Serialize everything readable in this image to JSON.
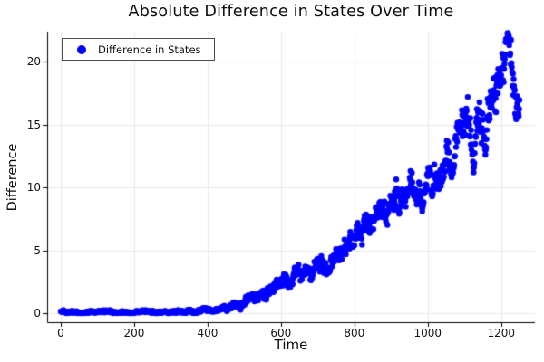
{
  "title": "Absolute Difference in States Over Time",
  "chart_data": {
    "type": "scatter",
    "title": "Absolute Difference in States Over Time",
    "xlabel": "Time",
    "ylabel": "Difference",
    "legend": {
      "position": "top-left",
      "entries": [
        {
          "label": "Difference in States",
          "marker": "circle",
          "color": "#0000ff"
        }
      ]
    },
    "x_ticks": [
      0,
      200,
      400,
      600,
      800,
      1000,
      1200
    ],
    "y_ticks": [
      0,
      5,
      10,
      15,
      20
    ],
    "xlim": [
      -37,
      1292
    ],
    "ylim": [
      -0.72,
      22.4
    ],
    "grid": true,
    "colors": {
      "series": "#0000ff",
      "grid": "#e8e8e8",
      "axis": "#000000",
      "text": "#111111"
    },
    "series": [
      {
        "name": "Difference in States",
        "color": "#0000ff",
        "marker": "circle",
        "marker_radius": 3.2,
        "t_start": 0,
        "t_end": 1250,
        "t_step": 1,
        "description": "Dense scatter of absolute state difference per time step: flat near 0 until t~450, then noisy monotonic rise to ~16-20 by t~1200, peak ~22.4 near t~1220, ending ~14-18 at t~1250.",
        "trend_keypoints": [
          [
            0,
            0.12,
            0.13
          ],
          [
            300,
            0.12,
            0.13
          ],
          [
            400,
            0.16,
            0.15
          ],
          [
            430,
            0.25,
            0.18
          ],
          [
            460,
            0.45,
            0.25
          ],
          [
            490,
            0.8,
            0.35
          ],
          [
            520,
            1.2,
            0.45
          ],
          [
            550,
            1.65,
            0.5
          ],
          [
            580,
            2.1,
            0.55
          ],
          [
            610,
            2.5,
            0.6
          ],
          [
            640,
            2.85,
            0.65
          ],
          [
            670,
            3.2,
            0.7
          ],
          [
            700,
            3.85,
            0.75
          ],
          [
            730,
            4.3,
            0.8
          ],
          [
            760,
            5.1,
            0.85
          ],
          [
            790,
            5.9,
            0.9
          ],
          [
            820,
            6.6,
            0.95
          ],
          [
            850,
            7.2,
            1.0
          ],
          [
            880,
            8.1,
            1.05
          ],
          [
            910,
            9.2,
            1.1
          ],
          [
            940,
            9.6,
            1.15
          ],
          [
            970,
            10.1,
            1.25
          ],
          [
            1000,
            10.8,
            1.35
          ],
          [
            1030,
            11.4,
            1.45
          ],
          [
            1060,
            12.1,
            1.55
          ],
          [
            1090,
            13.2,
            1.7
          ],
          [
            1120,
            14.2,
            1.85
          ],
          [
            1150,
            15.5,
            1.95
          ],
          [
            1175,
            16.8,
            2.0
          ],
          [
            1195,
            17.9,
            2.0
          ],
          [
            1208,
            19.3,
            1.8
          ],
          [
            1220,
            20.6,
            1.5
          ],
          [
            1232,
            18.4,
            1.8
          ],
          [
            1242,
            16.9,
            1.7
          ],
          [
            1250,
            15.9,
            1.5
          ]
        ],
        "events": {
          "dips": [
            {
              "t": 728,
              "w": 10,
              "low": 3.3
            },
            {
              "t": 922,
              "w": 10,
              "low": 7.9
            },
            {
              "t": 985,
              "w": 14,
              "low": 8.1
            },
            {
              "t": 1012,
              "w": 10,
              "low": 9.3
            },
            {
              "t": 1065,
              "w": 16,
              "low": 10.8
            },
            {
              "t": 1125,
              "w": 14,
              "low": 11.2
            },
            {
              "t": 1157,
              "w": 12,
              "low": 12.6
            }
          ],
          "spikes": [
            {
              "t": 1218,
              "w": 16,
              "high": 22.3
            }
          ]
        }
      }
    ]
  }
}
